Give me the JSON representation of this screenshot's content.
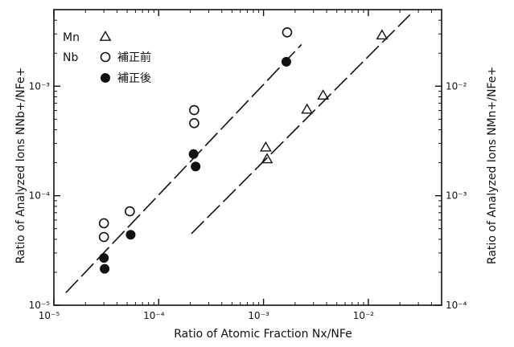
{
  "chart_data": {
    "type": "scatter",
    "title": "",
    "xlabel": "Ratio of Atomic Fraction  Nx/NFe",
    "ylabel_left": "Ratio of Analyzed Ions NNb+/NFe+",
    "ylabel_right": "Ratio of Analyzed Ions NMn+/NFe+",
    "x_scale": "log",
    "y_scale": "log",
    "xlim": [
      1e-05,
      0.05
    ],
    "ylim_left": [
      1e-05,
      0.005
    ],
    "ylim_right": [
      0.0001,
      0.05
    ],
    "grid": false,
    "legend_position": "top-left",
    "x_ticks": [
      {
        "value": 1e-05,
        "label": "10⁻⁵"
      },
      {
        "value": 0.0001,
        "label": "10⁻⁴"
      },
      {
        "value": 0.001,
        "label": "10⁻³"
      },
      {
        "value": 0.01,
        "label": "10⁻²"
      }
    ],
    "y_ticks_left": [
      {
        "value": 1e-05,
        "label": "10⁻⁵"
      },
      {
        "value": 0.0001,
        "label": "10⁻⁴"
      },
      {
        "value": 0.001,
        "label": "10⁻³"
      }
    ],
    "y_ticks_right": [
      {
        "value": 0.0001,
        "label": "10⁻⁴"
      },
      {
        "value": 0.001,
        "label": "10⁻³"
      },
      {
        "value": 0.01,
        "label": "10⁻²"
      }
    ],
    "series": [
      {
        "name": "Mn",
        "legend_group": "Mn",
        "marker": "open-triangle",
        "axis": "right",
        "points": [
          {
            "x": 0.00105,
            "y": 0.00275
          },
          {
            "x": 0.00108,
            "y": 0.00215
          },
          {
            "x": 0.0026,
            "y": 0.0061
          },
          {
            "x": 0.0037,
            "y": 0.0082
          },
          {
            "x": 0.0135,
            "y": 0.029
          }
        ]
      },
      {
        "name": "補正前",
        "legend_group": "Nb",
        "marker": "open-circle",
        "axis": "left",
        "points": [
          {
            "x": 3e-05,
            "y": 5.6e-05
          },
          {
            "x": 3e-05,
            "y": 4.2e-05
          },
          {
            "x": 5.3e-05,
            "y": 7.2e-05
          },
          {
            "x": 0.000218,
            "y": 0.000605
          },
          {
            "x": 0.000218,
            "y": 0.00046
          },
          {
            "x": 0.00168,
            "y": 0.0031
          }
        ]
      },
      {
        "name": "補正後",
        "legend_group": "Nb",
        "marker": "filled-circle",
        "axis": "left",
        "points": [
          {
            "x": 3e-05,
            "y": 2.7e-05
          },
          {
            "x": 3.05e-05,
            "y": 2.15e-05
          },
          {
            "x": 5.4e-05,
            "y": 4.4e-05
          },
          {
            "x": 0.000215,
            "y": 0.00024
          },
          {
            "x": 0.000225,
            "y": 0.000185
          },
          {
            "x": 0.00165,
            "y": 0.00167
          }
        ]
      }
    ],
    "fit_lines": [
      {
        "axis": "left",
        "from": {
          "x": 1.3e-05,
          "y": 1.3e-05
        },
        "to": {
          "x": 0.0023,
          "y": 0.0024
        }
      },
      {
        "axis": "right",
        "from": {
          "x": 0.000205,
          "y": 0.00045
        },
        "to": {
          "x": 0.025,
          "y": 0.045
        }
      }
    ]
  }
}
